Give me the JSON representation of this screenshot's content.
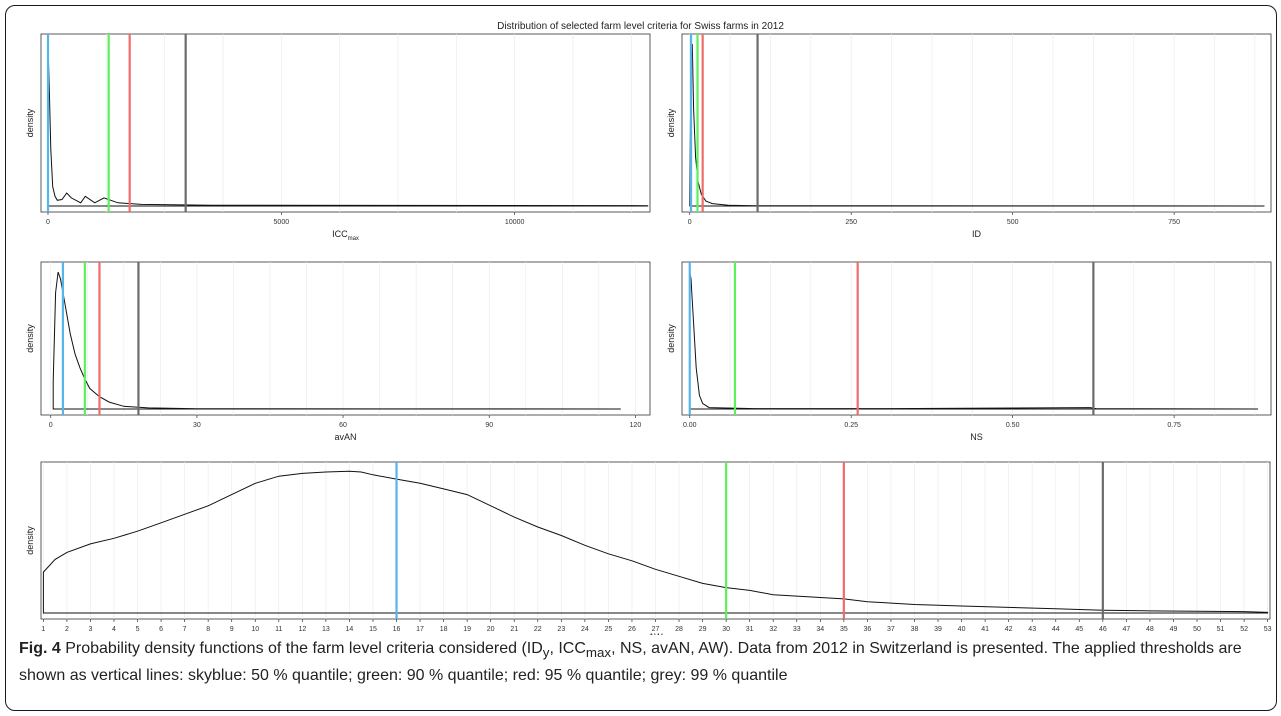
{
  "figure_title": "Distribution of selected farm level criteria for Swiss farms in 2012",
  "caption": {
    "label": "Fig. 4",
    "text": "Probability density functions of the farm level criteria considered (ID",
    "sub_y": "y",
    "text2": ", ICC",
    "sub_max": "max",
    "text3": ", NS, avAN, AW). Data from 2012 in Switzerland is presented. The applied thresholds are shown as vertical lines: skyblue: 50 % quantile; green: 90 % quantile; red: 95 % quantile; grey: 99 % quantile"
  },
  "threshold_colors": {
    "q50": "#56b4e9",
    "q90": "#5cf05c",
    "q95": "#f26b6b",
    "q99": "#6b6b6b"
  },
  "chart_data": [
    {
      "type": "area",
      "id": "icc",
      "xlabel": "ICC",
      "xlabel_sub": "max",
      "ylabel": "density",
      "xlim": [
        -150,
        12900
      ],
      "xticks": [
        0,
        5000,
        10000
      ],
      "xtick_labels": [
        "0",
        "5000",
        "10000"
      ],
      "grid_step": 1250,
      "thresholds": {
        "q50": 0,
        "q90": 1300,
        "q95": 1750,
        "q99": 2950
      },
      "curve": {
        "x": [
          0,
          30,
          60,
          100,
          150,
          200,
          300,
          400,
          500,
          700,
          800,
          1000,
          1200,
          1500,
          2000,
          3500,
          12850
        ],
        "y": [
          1.0,
          0.7,
          0.35,
          0.12,
          0.06,
          0.035,
          0.04,
          0.08,
          0.05,
          0.02,
          0.06,
          0.02,
          0.05,
          0.02,
          0.01,
          0.005,
          0.002
        ]
      }
    },
    {
      "type": "area",
      "id": "id",
      "xlabel": "ID",
      "xlabel_sub": "",
      "ylabel": "density",
      "xlim": [
        -12,
        900
      ],
      "xticks": [
        0,
        250,
        500,
        750
      ],
      "xtick_labels": [
        "0",
        "250",
        "500",
        "750"
      ],
      "grid_step": 62.5,
      "thresholds": {
        "q50": 2,
        "q90": 12,
        "q95": 20,
        "q99": 105
      },
      "curve": {
        "x": [
          0,
          2,
          4,
          6,
          9,
          13,
          18,
          25,
          35,
          60,
          100,
          890
        ],
        "y": [
          0.0,
          0.95,
          1.0,
          0.6,
          0.3,
          0.15,
          0.07,
          0.03,
          0.015,
          0.005,
          0.002,
          0.0
        ]
      }
    },
    {
      "type": "area",
      "id": "avan",
      "xlabel": "avAN",
      "xlabel_sub": "",
      "ylabel": "density",
      "xlim": [
        -2,
        123
      ],
      "xticks": [
        0,
        30,
        60,
        90,
        120
      ],
      "xtick_labels": [
        "0",
        "30",
        "60",
        "90",
        "120"
      ],
      "grid_step": 7.5,
      "thresholds": {
        "q50": 2.5,
        "q90": 7,
        "q95": 10,
        "q99": 18
      },
      "curve": {
        "x": [
          0.5,
          1,
          1.5,
          2,
          3,
          4,
          5,
          6,
          7,
          8,
          10,
          12,
          15,
          20,
          30,
          117
        ],
        "y": [
          0.2,
          0.85,
          1.0,
          0.95,
          0.75,
          0.55,
          0.4,
          0.3,
          0.22,
          0.15,
          0.09,
          0.05,
          0.02,
          0.008,
          0.002,
          0.0
        ]
      }
    },
    {
      "type": "area",
      "id": "ns",
      "xlabel": "NS",
      "xlabel_sub": "",
      "ylabel": "density",
      "xlim": [
        -0.012,
        0.9
      ],
      "xticks": [
        0.0,
        0.25,
        0.5,
        0.75
      ],
      "xtick_labels": [
        "0.00",
        "0.25",
        "0.50",
        "0.75"
      ],
      "grid_step": 0.0625,
      "thresholds": {
        "q50": 0.0,
        "q90": 0.07,
        "q95": 0.26,
        "q99": 0.625
      },
      "curve": {
        "x": [
          0.0,
          0.002,
          0.005,
          0.01,
          0.015,
          0.02,
          0.03,
          0.1,
          0.3,
          0.62,
          0.63,
          0.88
        ],
        "y": [
          1.0,
          0.95,
          0.7,
          0.3,
          0.1,
          0.04,
          0.01,
          0.003,
          0.003,
          0.01,
          0.002,
          0.0
        ]
      }
    },
    {
      "type": "area",
      "id": "aw",
      "xlabel": "AW",
      "xlabel_sub": "",
      "ylabel": "density",
      "xlim": [
        0.9,
        53.1
      ],
      "xticks": [
        1,
        2,
        3,
        4,
        5,
        6,
        7,
        8,
        9,
        10,
        11,
        12,
        13,
        14,
        15,
        16,
        17,
        18,
        19,
        20,
        21,
        22,
        23,
        24,
        25,
        26,
        27,
        28,
        29,
        30,
        31,
        32,
        33,
        34,
        35,
        36,
        37,
        38,
        39,
        40,
        41,
        42,
        43,
        44,
        45,
        46,
        47,
        48,
        49,
        50,
        51,
        52,
        53
      ],
      "xtick_labels": [
        "1",
        "2",
        "3",
        "4",
        "5",
        "6",
        "7",
        "8",
        "9",
        "10",
        "11",
        "12",
        "13",
        "14",
        "15",
        "16",
        "17",
        "18",
        "19",
        "20",
        "21",
        "22",
        "23",
        "24",
        "25",
        "26",
        "27",
        "28",
        "29",
        "30",
        "31",
        "32",
        "33",
        "34",
        "35",
        "36",
        "37",
        "38",
        "39",
        "40",
        "41",
        "42",
        "43",
        "44",
        "45",
        "46",
        "47",
        "48",
        "49",
        "50",
        "51",
        "52",
        "53"
      ],
      "grid_step": 1,
      "thresholds": {
        "q50": 16,
        "q90": 30,
        "q95": 35,
        "q99": 46
      },
      "curve": {
        "x": [
          1,
          1.5,
          2,
          3,
          4,
          5,
          6,
          7,
          8,
          9,
          10,
          11,
          12,
          13,
          14,
          14.5,
          15,
          16,
          17,
          18,
          19,
          20,
          21,
          22,
          23,
          24,
          25,
          26,
          27,
          28,
          29,
          30,
          31,
          32,
          33,
          34,
          35,
          36,
          38,
          40,
          42,
          44,
          46,
          48,
          50,
          52,
          53
        ],
        "y": [
          0.29,
          0.38,
          0.43,
          0.49,
          0.53,
          0.58,
          0.64,
          0.7,
          0.76,
          0.84,
          0.92,
          0.97,
          0.99,
          1.0,
          1.005,
          1.0,
          0.98,
          0.95,
          0.92,
          0.88,
          0.84,
          0.76,
          0.68,
          0.61,
          0.55,
          0.48,
          0.42,
          0.37,
          0.31,
          0.26,
          0.21,
          0.18,
          0.16,
          0.13,
          0.12,
          0.11,
          0.1,
          0.08,
          0.06,
          0.05,
          0.04,
          0.03,
          0.02,
          0.015,
          0.012,
          0.01,
          0.005
        ]
      }
    }
  ]
}
